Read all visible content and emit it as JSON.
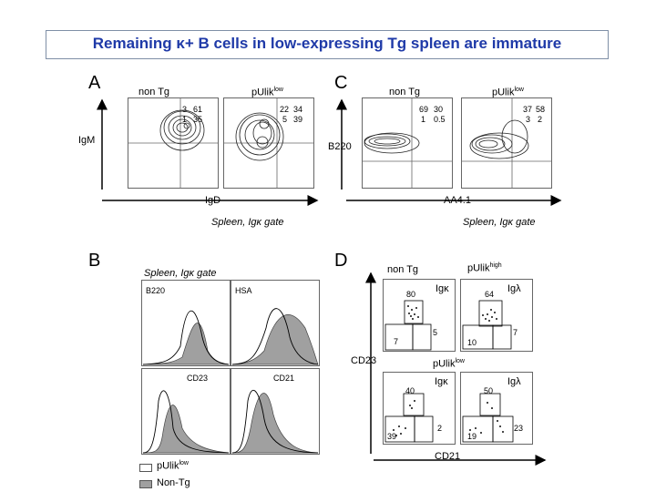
{
  "title": {
    "prefix": "Remaining ",
    "kappa": "κ",
    "suffix": "+ B cells in low-expressing Tg spleen are immature"
  },
  "panels": {
    "A": {
      "letter": "A",
      "col1": "non Tg",
      "col2_base": "pUlik",
      "col2_sup": "low",
      "quad1": {
        "tl": "3",
        "tr": "61",
        "bl": "1",
        "br": "35"
      },
      "quad2": {
        "tl": "22",
        "tr": "34",
        "bl": "5",
        "br": "39"
      },
      "y_axis": "IgM",
      "x_axis": "IgD",
      "gate": "Spleen, Igκ gate"
    },
    "C": {
      "letter": "C",
      "col1": "non Tg",
      "col2_base": "pUlik",
      "col2_sup": "low",
      "quad1": {
        "tl": "69",
        "tr": "30",
        "bl": "1",
        "br": "0.5"
      },
      "quad2": {
        "tl": "37",
        "tr": "58",
        "bl": "3",
        "br": "2"
      },
      "y_axis": "B220",
      "x_axis": "AA4.1",
      "gate": "Spleen, Igκ gate"
    },
    "B": {
      "letter": "B",
      "gate": "Spleen, Igκ gate",
      "hist_labels": [
        "B220",
        "HSA",
        "CD23",
        "CD21"
      ],
      "legend": [
        {
          "label_base": "pUlik",
          "label_sup": "low",
          "fill": "#ffffff"
        },
        {
          "label_base": "Non-Tg",
          "label_sup": "",
          "fill": "#a0a0a0"
        }
      ]
    },
    "D": {
      "letter": "D",
      "top_left_title": "non Tg",
      "top_right_title_base": "pUlik",
      "top_right_title_sup": "high",
      "bottom_title_base": "pUlik",
      "bottom_title_sup": "low",
      "plots": [
        {
          "header": "Igκ",
          "top": "80",
          "bl": "7",
          "br": "5"
        },
        {
          "header": "Igλ",
          "top": "64",
          "bl": "10",
          "br": "7"
        },
        {
          "header": "Igκ",
          "top": "40",
          "bl": "39",
          "br": "2"
        },
        {
          "header": "Igλ",
          "top": "50",
          "bl": "19",
          "br": "23"
        }
      ],
      "y_axis": "CD23",
      "x_axis": "CD21"
    }
  },
  "colors": {
    "title": "#1f3aa8",
    "fill_gray": "#a0a0a0"
  }
}
